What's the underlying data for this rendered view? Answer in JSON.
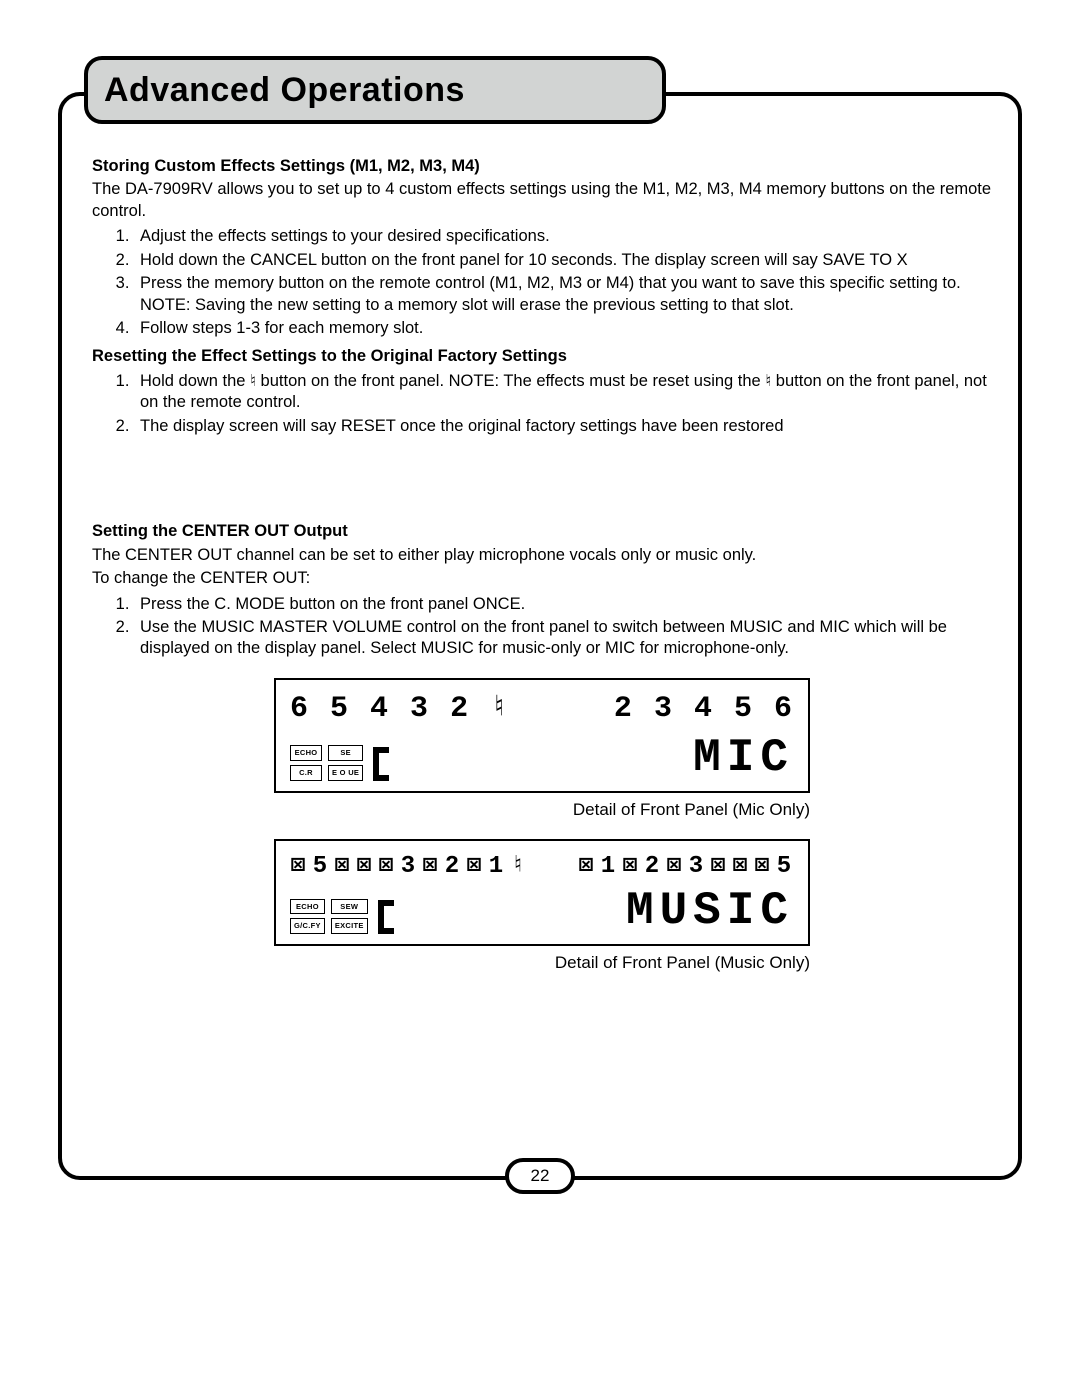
{
  "page_title": "Advanced Operations",
  "page_number": "22",
  "section1": {
    "heading": "Storing Custom Effects Settings (M1, M2, M3, M4)",
    "intro": "The DA-7909RV allows you to set up to 4 custom effects settings using the M1, M2, M3, M4 memory buttons on the remote control.",
    "steps": [
      "Adjust the effects settings to your desired specifications.",
      "Hold down the CANCEL button on the front panel for 10 seconds.  The display screen will say SAVE TO X",
      "Press the memory button on the remote control (M1, M2, M3 or M4) that you want to save this specific setting to. NOTE: Saving the new setting to a memory slot will erase the previous setting to that slot.",
      "Follow steps 1-3 for each memory slot."
    ]
  },
  "section2": {
    "heading": "Resetting the Effect Settings to the Original Factory Settings",
    "steps": [
      "Hold down the ♮ button on the front panel. NOTE: The effects must be reset using the ♮ button on the front panel, not on the remote control.",
      "The display screen will say RESET once the original factory settings have been restored"
    ]
  },
  "section3": {
    "heading": "Setting the CENTER OUT Output",
    "intro1": "The CENTER OUT channel can be set to either play microphone vocals only or music only.",
    "intro2": "To change the CENTER OUT:",
    "steps": [
      "Press the C. MODE button on the front panel ONCE.",
      "Use the MUSIC MASTER VOLUME control on the front panel to switch between MUSIC and MIC which will be displayed on the display panel. Select MUSIC for music-only or MIC for microphone-only."
    ]
  },
  "panel1": {
    "top_left": [
      "6",
      "5",
      "4",
      "3",
      "2",
      "♮"
    ],
    "top_right": [
      "2",
      "3",
      "4",
      "5",
      "6"
    ],
    "box_tl": "ECHO",
    "box_tr": "SE",
    "box_bl": "C.R",
    "box_br": "E  O  UE",
    "big": "MIC",
    "caption": "Detail of Front Panel (Mic Only)"
  },
  "panel2": {
    "top_left": [
      "⊠",
      "5",
      "⊠",
      "⊠",
      "⊠",
      "3",
      "⊠",
      "2",
      "⊠",
      "1",
      "♮"
    ],
    "top_right": [
      "⊠",
      "1",
      "⊠",
      "2",
      "⊠",
      "3",
      "⊠",
      "⊠",
      "⊠",
      "5"
    ],
    "box_tl": "ECHO",
    "box_tr": "SEW",
    "box_bl": "G/C.FY",
    "box_br": "EXCITE",
    "big": "MUSIC",
    "caption": "Detail of Front Panel (Music Only)"
  }
}
